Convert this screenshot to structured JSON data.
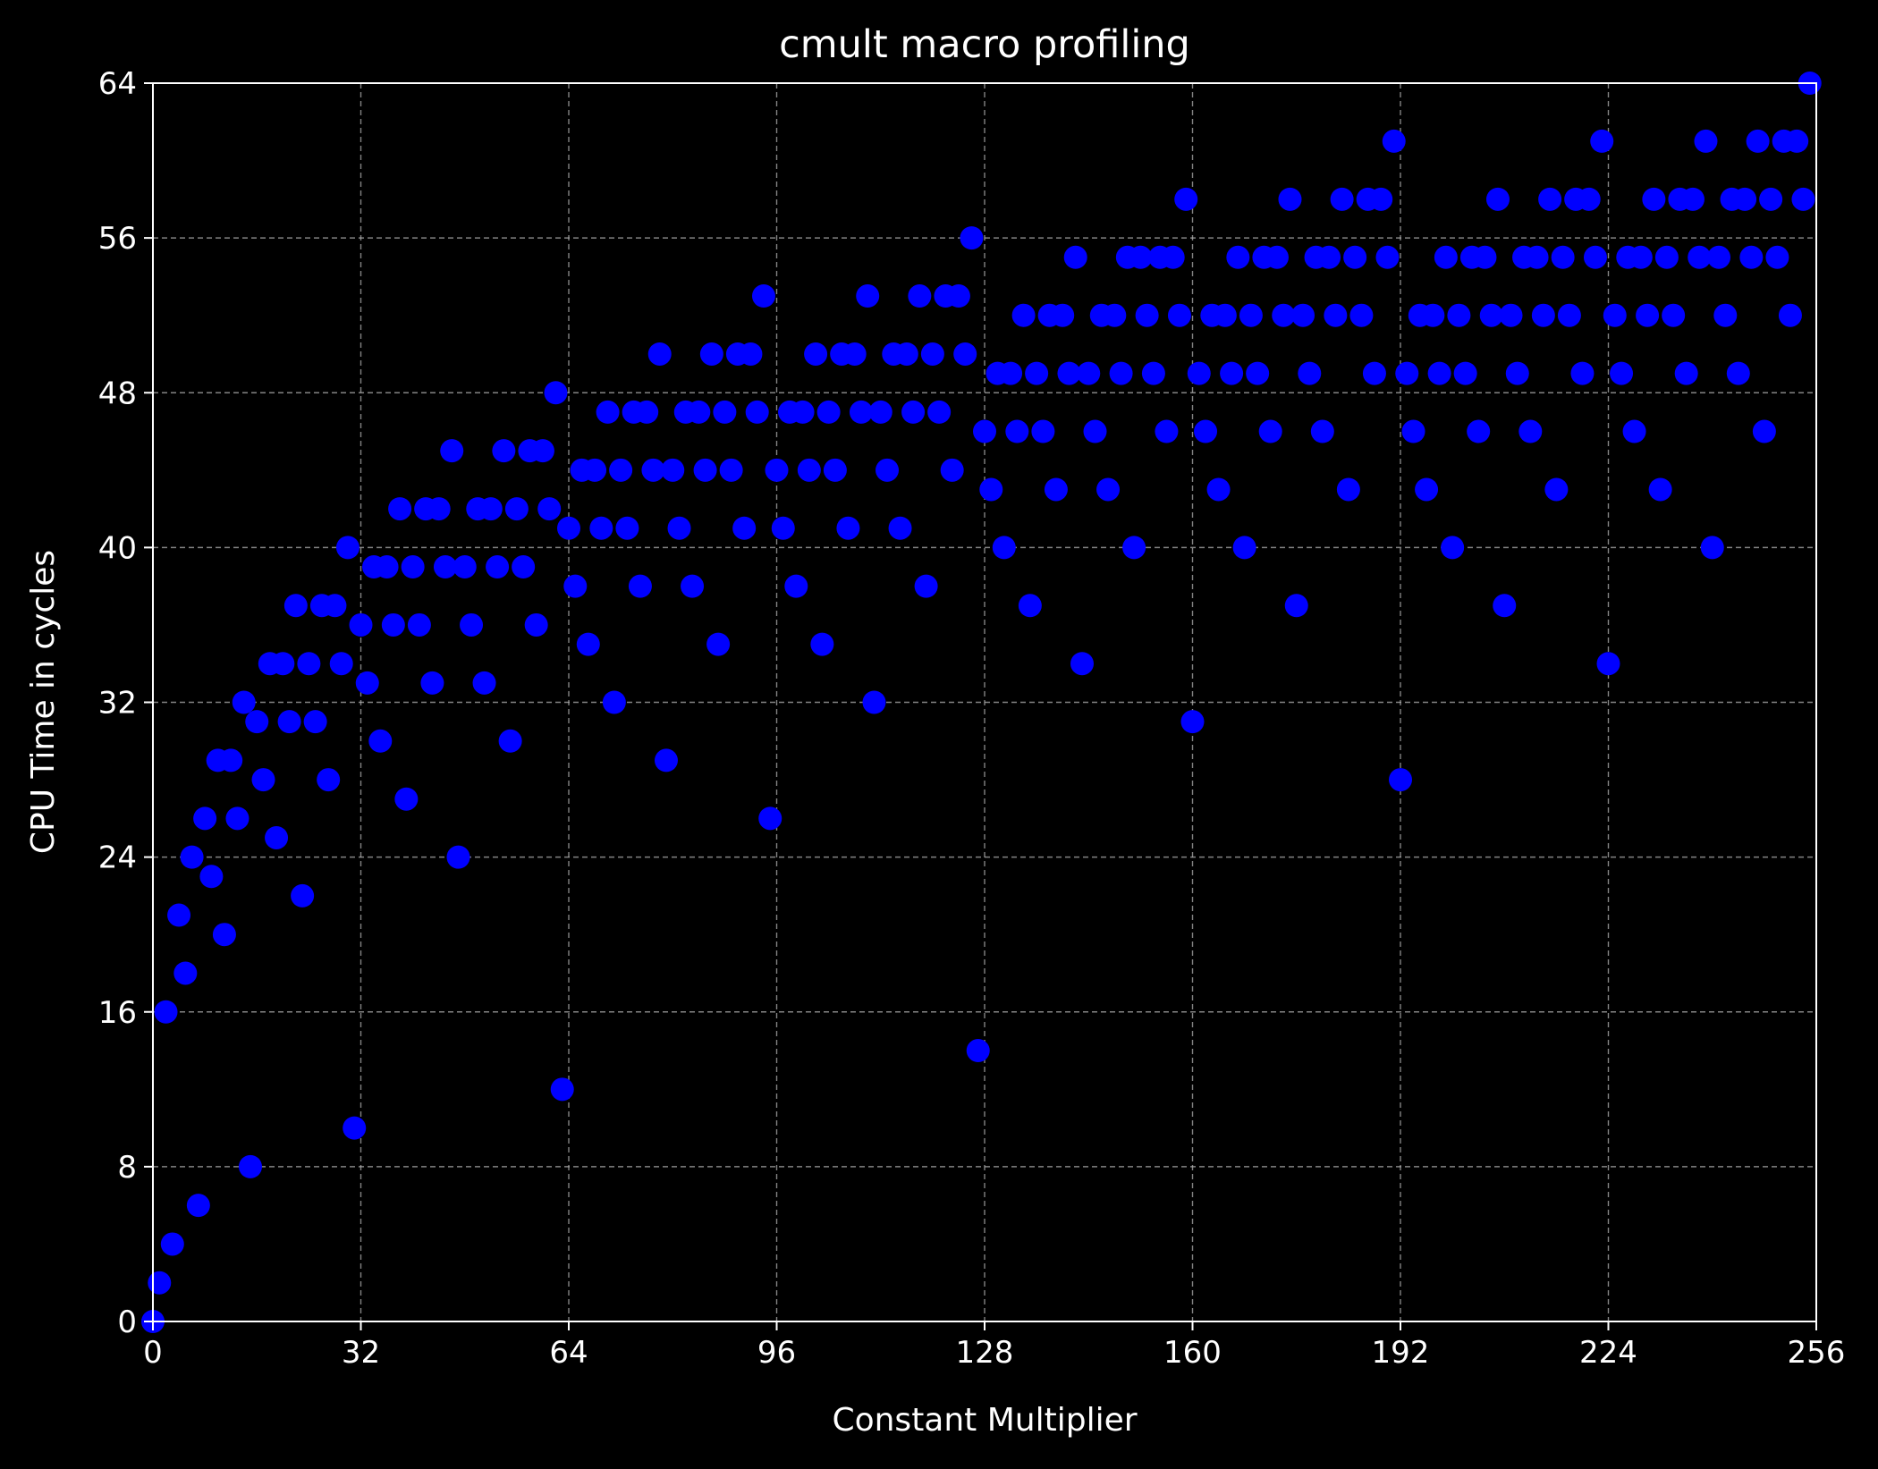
{
  "chart_data": {
    "type": "scatter",
    "title": "cmult macro profiling",
    "xlabel": "Constant Multiplier",
    "ylabel": "CPU Time in cycles",
    "xlim": [
      0,
      256
    ],
    "ylim": [
      0,
      64
    ],
    "xticks": [
      0,
      32,
      64,
      96,
      128,
      160,
      192,
      224,
      256
    ],
    "yticks": [
      0,
      8,
      16,
      24,
      32,
      40,
      48,
      56,
      64
    ],
    "grid": true,
    "marker_color": "#0000ff",
    "background_color": "#000000",
    "series": [
      {
        "values": [
          [
            0,
            0
          ],
          [
            1,
            2
          ],
          [
            2,
            16
          ],
          [
            3,
            4
          ],
          [
            4,
            21
          ],
          [
            5,
            18
          ],
          [
            6,
            24
          ],
          [
            7,
            6
          ],
          [
            8,
            26
          ],
          [
            9,
            23
          ],
          [
            10,
            29
          ],
          [
            11,
            20
          ],
          [
            12,
            29
          ],
          [
            13,
            26
          ],
          [
            14,
            32
          ],
          [
            15,
            8
          ],
          [
            16,
            31
          ],
          [
            17,
            28
          ],
          [
            18,
            34
          ],
          [
            19,
            25
          ],
          [
            20,
            34
          ],
          [
            21,
            31
          ],
          [
            22,
            37
          ],
          [
            23,
            22
          ],
          [
            24,
            34
          ],
          [
            25,
            31
          ],
          [
            26,
            37
          ],
          [
            27,
            28
          ],
          [
            28,
            37
          ],
          [
            29,
            34
          ],
          [
            30,
            40
          ],
          [
            31,
            10
          ],
          [
            32,
            36
          ],
          [
            33,
            33
          ],
          [
            34,
            39
          ],
          [
            35,
            30
          ],
          [
            36,
            39
          ],
          [
            37,
            36
          ],
          [
            38,
            42
          ],
          [
            39,
            27
          ],
          [
            40,
            39
          ],
          [
            41,
            36
          ],
          [
            42,
            42
          ],
          [
            43,
            33
          ],
          [
            44,
            42
          ],
          [
            45,
            39
          ],
          [
            46,
            45
          ],
          [
            47,
            24
          ],
          [
            48,
            39
          ],
          [
            49,
            36
          ],
          [
            50,
            42
          ],
          [
            51,
            33
          ],
          [
            52,
            42
          ],
          [
            53,
            39
          ],
          [
            54,
            45
          ],
          [
            55,
            30
          ],
          [
            56,
            42
          ],
          [
            57,
            39
          ],
          [
            58,
            45
          ],
          [
            59,
            36
          ],
          [
            60,
            45
          ],
          [
            61,
            42
          ],
          [
            62,
            48
          ],
          [
            63,
            12
          ],
          [
            64,
            41
          ],
          [
            65,
            38
          ],
          [
            66,
            44
          ],
          [
            67,
            35
          ],
          [
            68,
            44
          ],
          [
            69,
            41
          ],
          [
            70,
            47
          ],
          [
            71,
            32
          ],
          [
            72,
            44
          ],
          [
            73,
            41
          ],
          [
            74,
            47
          ],
          [
            75,
            38
          ],
          [
            76,
            47
          ],
          [
            77,
            44
          ],
          [
            78,
            50
          ],
          [
            79,
            29
          ],
          [
            80,
            44
          ],
          [
            81,
            41
          ],
          [
            82,
            47
          ],
          [
            83,
            38
          ],
          [
            84,
            47
          ],
          [
            85,
            44
          ],
          [
            86,
            50
          ],
          [
            87,
            35
          ],
          [
            88,
            47
          ],
          [
            89,
            44
          ],
          [
            90,
            50
          ],
          [
            91,
            41
          ],
          [
            92,
            50
          ],
          [
            93,
            47
          ],
          [
            94,
            53
          ],
          [
            95,
            26
          ],
          [
            96,
            44
          ],
          [
            97,
            41
          ],
          [
            98,
            47
          ],
          [
            99,
            38
          ],
          [
            100,
            47
          ],
          [
            101,
            44
          ],
          [
            102,
            50
          ],
          [
            103,
            35
          ],
          [
            104,
            47
          ],
          [
            105,
            44
          ],
          [
            106,
            50
          ],
          [
            107,
            41
          ],
          [
            108,
            50
          ],
          [
            109,
            47
          ],
          [
            110,
            53
          ],
          [
            111,
            32
          ],
          [
            112,
            47
          ],
          [
            113,
            44
          ],
          [
            114,
            50
          ],
          [
            115,
            41
          ],
          [
            116,
            50
          ],
          [
            117,
            47
          ],
          [
            118,
            53
          ],
          [
            119,
            38
          ],
          [
            120,
            50
          ],
          [
            121,
            47
          ],
          [
            122,
            53
          ],
          [
            123,
            44
          ],
          [
            124,
            53
          ],
          [
            125,
            50
          ],
          [
            126,
            56
          ],
          [
            127,
            14
          ],
          [
            128,
            46
          ],
          [
            129,
            43
          ],
          [
            130,
            49
          ],
          [
            131,
            40
          ],
          [
            132,
            49
          ],
          [
            133,
            46
          ],
          [
            134,
            52
          ],
          [
            135,
            37
          ],
          [
            136,
            49
          ],
          [
            137,
            46
          ],
          [
            138,
            52
          ],
          [
            139,
            43
          ],
          [
            140,
            52
          ],
          [
            141,
            49
          ],
          [
            142,
            55
          ],
          [
            143,
            34
          ],
          [
            144,
            49
          ],
          [
            145,
            46
          ],
          [
            146,
            52
          ],
          [
            147,
            43
          ],
          [
            148,
            52
          ],
          [
            149,
            49
          ],
          [
            150,
            55
          ],
          [
            151,
            40
          ],
          [
            152,
            55
          ],
          [
            153,
            52
          ],
          [
            154,
            49
          ],
          [
            155,
            55
          ],
          [
            156,
            46
          ],
          [
            157,
            55
          ],
          [
            158,
            52
          ],
          [
            159,
            58
          ],
          [
            160,
            31
          ],
          [
            161,
            49
          ],
          [
            162,
            46
          ],
          [
            163,
            52
          ],
          [
            164,
            43
          ],
          [
            165,
            52
          ],
          [
            166,
            49
          ],
          [
            167,
            55
          ],
          [
            168,
            40
          ],
          [
            169,
            52
          ],
          [
            170,
            49
          ],
          [
            171,
            55
          ],
          [
            172,
            46
          ],
          [
            173,
            55
          ],
          [
            174,
            52
          ],
          [
            175,
            58
          ],
          [
            176,
            37
          ],
          [
            177,
            52
          ],
          [
            178,
            49
          ],
          [
            179,
            55
          ],
          [
            180,
            46
          ],
          [
            181,
            55
          ],
          [
            182,
            52
          ],
          [
            183,
            58
          ],
          [
            184,
            43
          ],
          [
            185,
            55
          ],
          [
            186,
            52
          ],
          [
            187,
            58
          ],
          [
            188,
            49
          ],
          [
            189,
            58
          ],
          [
            190,
            55
          ],
          [
            191,
            61
          ],
          [
            192,
            28
          ],
          [
            193,
            49
          ],
          [
            194,
            46
          ],
          [
            195,
            52
          ],
          [
            196,
            43
          ],
          [
            197,
            52
          ],
          [
            198,
            49
          ],
          [
            199,
            55
          ],
          [
            200,
            40
          ],
          [
            201,
            52
          ],
          [
            202,
            49
          ],
          [
            203,
            55
          ],
          [
            204,
            46
          ],
          [
            205,
            55
          ],
          [
            206,
            52
          ],
          [
            207,
            58
          ],
          [
            208,
            37
          ],
          [
            209,
            52
          ],
          [
            210,
            49
          ],
          [
            211,
            55
          ],
          [
            212,
            46
          ],
          [
            213,
            55
          ],
          [
            214,
            52
          ],
          [
            215,
            58
          ],
          [
            216,
            43
          ],
          [
            217,
            55
          ],
          [
            218,
            52
          ],
          [
            219,
            58
          ],
          [
            220,
            49
          ],
          [
            221,
            58
          ],
          [
            222,
            55
          ],
          [
            223,
            61
          ],
          [
            224,
            34
          ],
          [
            225,
            52
          ],
          [
            226,
            49
          ],
          [
            227,
            55
          ],
          [
            228,
            46
          ],
          [
            229,
            55
          ],
          [
            230,
            52
          ],
          [
            231,
            58
          ],
          [
            232,
            43
          ],
          [
            233,
            55
          ],
          [
            234,
            52
          ],
          [
            235,
            58
          ],
          [
            236,
            49
          ],
          [
            237,
            58
          ],
          [
            238,
            55
          ],
          [
            239,
            61
          ],
          [
            240,
            40
          ],
          [
            241,
            55
          ],
          [
            242,
            52
          ],
          [
            243,
            58
          ],
          [
            244,
            49
          ],
          [
            245,
            58
          ],
          [
            246,
            55
          ],
          [
            247,
            61
          ],
          [
            248,
            46
          ],
          [
            249,
            58
          ],
          [
            250,
            55
          ],
          [
            251,
            61
          ],
          [
            252,
            52
          ],
          [
            253,
            61
          ],
          [
            254,
            58
          ],
          [
            255,
            64
          ]
        ]
      }
    ]
  }
}
